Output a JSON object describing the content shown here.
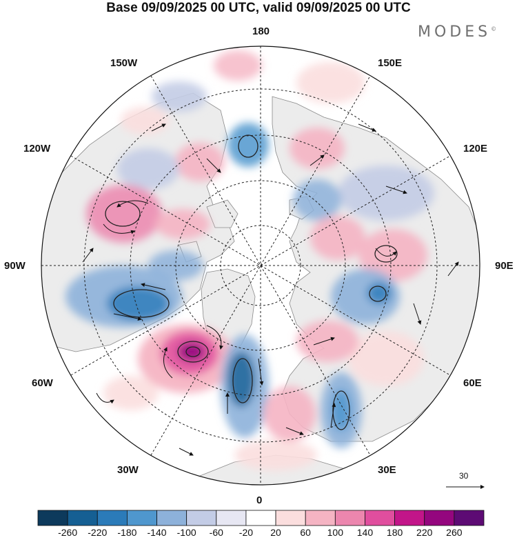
{
  "title": "Base 09/09/2025 00 UTC, valid 09/09/2025 00 UTC",
  "brand": "MODES",
  "brand_mark": "©",
  "longitude_labels": {
    "deg0": "0",
    "deg30e": "30E",
    "deg60e": "60E",
    "deg90e": "90E",
    "deg120e": "120E",
    "deg150e": "150E",
    "deg180": "180",
    "deg150w": "150W",
    "deg120w": "120W",
    "deg90w": "90W",
    "deg60w": "60W",
    "deg30w": "30W"
  },
  "reference_vector": {
    "label": "30"
  },
  "colorbar": {
    "ticks": [
      "-260",
      "-220",
      "-180",
      "-140",
      "-100",
      "-60",
      "-20",
      "20",
      "60",
      "100",
      "140",
      "180",
      "220",
      "260"
    ],
    "colors": [
      "#0d3a5c",
      "#155f93",
      "#2b7bb9",
      "#4f97ce",
      "#8db1da",
      "#c3cce6",
      "#e7e7f3",
      "#ffffff",
      "#fbdede",
      "#f5b4c3",
      "#ec86ae",
      "#e04e9e",
      "#c21589",
      "#94067e",
      "#5d0b74"
    ]
  },
  "map_colors": {
    "ocean": "#ffffff",
    "land": "#ececec",
    "coast": "#8a8a8a",
    "grid": "#222222"
  }
}
